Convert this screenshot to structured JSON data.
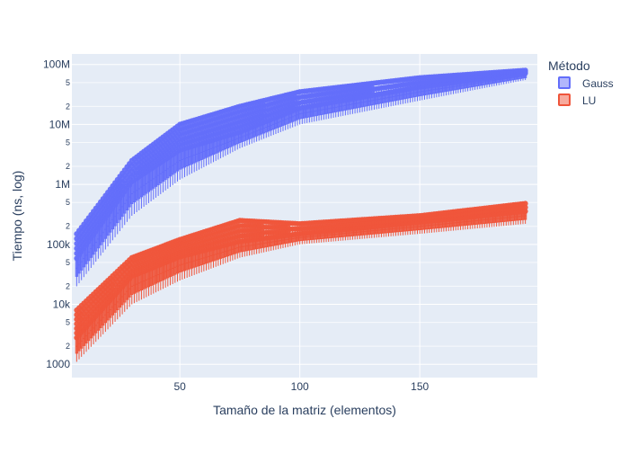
{
  "chart_data": {
    "type": "box",
    "title": "",
    "xlabel": "Tamaño de la matriz (elementos)",
    "ylabel": "Tiempo (ns, log)",
    "x_ticks": [
      50,
      100,
      150
    ],
    "x_range": [
      5,
      199
    ],
    "y_scale": "log",
    "y_range": [
      600,
      150000000
    ],
    "y_major_ticks": [
      {
        "value": 1000,
        "label": "1000"
      },
      {
        "value": 10000,
        "label": "10k"
      },
      {
        "value": 100000,
        "label": "100k"
      },
      {
        "value": 1000000,
        "label": "1M"
      },
      {
        "value": 10000000,
        "label": "10M"
      },
      {
        "value": 100000000,
        "label": "100M"
      }
    ],
    "y_minor_labels": [
      "2",
      "5"
    ],
    "legend": {
      "title": "Método",
      "position": "top-right"
    },
    "series": [
      {
        "name": "Gauss",
        "color": "#636efa",
        "sizes_range": [
          7,
          194
        ],
        "median_at_sizes": [
          [
            7,
            40000
          ],
          [
            30,
            700000
          ],
          [
            50,
            2500000
          ],
          [
            75,
            6000000
          ],
          [
            100,
            15000000
          ],
          [
            150,
            35000000
          ],
          [
            194,
            65000000
          ]
        ],
        "max_at_sizes": [
          [
            7,
            150000
          ],
          [
            30,
            2500000
          ],
          [
            50,
            10000000
          ],
          [
            75,
            20000000
          ],
          [
            100,
            35000000
          ],
          [
            150,
            60000000
          ],
          [
            194,
            80000000
          ]
        ],
        "min_at_sizes": [
          [
            7,
            20000
          ],
          [
            30,
            300000
          ],
          [
            50,
            1200000
          ],
          [
            75,
            4000000
          ],
          [
            100,
            10000000
          ],
          [
            150,
            25000000
          ],
          [
            194,
            55000000
          ]
        ]
      },
      {
        "name": "LU",
        "color": "#ef553b",
        "sizes_range": [
          7,
          194
        ],
        "median_at_sizes": [
          [
            7,
            2000
          ],
          [
            30,
            20000
          ],
          [
            50,
            45000
          ],
          [
            75,
            90000
          ],
          [
            100,
            130000
          ],
          [
            150,
            200000
          ],
          [
            194,
            300000
          ]
        ],
        "max_at_sizes": [
          [
            7,
            8000
          ],
          [
            30,
            60000
          ],
          [
            50,
            120000
          ],
          [
            75,
            250000
          ],
          [
            100,
            220000
          ],
          [
            150,
            300000
          ],
          [
            194,
            480000
          ]
        ],
        "min_at_sizes": [
          [
            7,
            1100
          ],
          [
            30,
            10000
          ],
          [
            50,
            25000
          ],
          [
            75,
            60000
          ],
          [
            100,
            100000
          ],
          [
            150,
            150000
          ],
          [
            194,
            220000
          ]
        ]
      }
    ]
  }
}
